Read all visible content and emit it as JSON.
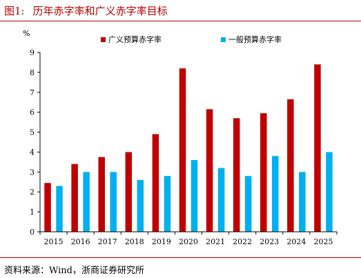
{
  "figure": {
    "number": "图1:",
    "title": "历年赤字率和广义赤字率目标"
  },
  "source": "资料来源：Wind，浙商证券研究所",
  "chart_data": {
    "type": "bar",
    "unit": "%",
    "categories": [
      "2015",
      "2016",
      "2017",
      "2018",
      "2019",
      "2020",
      "2021",
      "2022",
      "2023",
      "2024",
      "2025"
    ],
    "series": [
      {
        "name": "广义预算赤字率",
        "color": "#c00000",
        "values": [
          2.45,
          3.4,
          3.75,
          4.0,
          4.9,
          8.2,
          6.15,
          5.7,
          5.95,
          6.65,
          8.4
        ]
      },
      {
        "name": "一般预算赤字率",
        "color": "#00b0f0",
        "values": [
          2.3,
          3.0,
          3.0,
          2.6,
          2.8,
          3.6,
          3.2,
          2.8,
          3.8,
          3.0,
          4.0
        ]
      }
    ],
    "ylim": [
      0,
      9
    ],
    "yticks": [
      0,
      1,
      2,
      3,
      4,
      5,
      6,
      7,
      8,
      9
    ],
    "xlabel": "",
    "ylabel": "",
    "grid": false,
    "legend_position": "top"
  }
}
